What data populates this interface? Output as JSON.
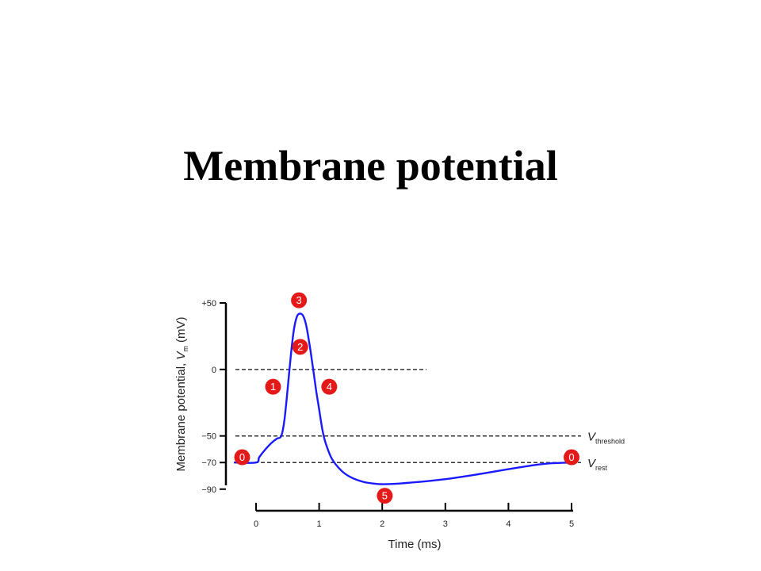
{
  "slide": {
    "title": "Membrane potential"
  },
  "chart_data": {
    "type": "line",
    "xlabel": "Time (ms)",
    "ylabel_main": "Membrane potential, ",
    "ylabel_var": "V",
    "ylabel_sub": "m",
    "ylabel_unit": " (mV)",
    "xlim": [
      0,
      5
    ],
    "ylim": [
      -90,
      50
    ],
    "x_ticks": [
      0,
      1,
      2,
      3,
      4,
      5
    ],
    "x_tick_labels": [
      "0",
      "1",
      "2",
      "3",
      "4",
      "5"
    ],
    "y_ticks": [
      50,
      0,
      -50,
      -70,
      -90
    ],
    "y_tick_labels": [
      "+50",
      "0",
      "−50",
      "−70",
      "−90"
    ],
    "series": [
      {
        "color": "#1a1aff",
        "points": [
          [
            -0.35,
            -70
          ],
          [
            0.0,
            -70
          ],
          [
            0.05,
            -66
          ],
          [
            0.15,
            -60
          ],
          [
            0.25,
            -55
          ],
          [
            0.33,
            -52
          ],
          [
            0.4,
            -50
          ],
          [
            0.45,
            -38
          ],
          [
            0.5,
            -15
          ],
          [
            0.55,
            10
          ],
          [
            0.6,
            30
          ],
          [
            0.65,
            40
          ],
          [
            0.7,
            42
          ],
          [
            0.75,
            40
          ],
          [
            0.8,
            32
          ],
          [
            0.85,
            18
          ],
          [
            0.9,
            2
          ],
          [
            0.95,
            -15
          ],
          [
            1.0,
            -30
          ],
          [
            1.05,
            -45
          ],
          [
            1.1,
            -55
          ],
          [
            1.2,
            -67
          ],
          [
            1.35,
            -76
          ],
          [
            1.5,
            -81
          ],
          [
            1.7,
            -84.5
          ],
          [
            1.9,
            -86
          ],
          [
            2.0,
            -86.3
          ],
          [
            2.2,
            -86
          ],
          [
            2.6,
            -84.5
          ],
          [
            3.0,
            -82.5
          ],
          [
            3.5,
            -79
          ],
          [
            4.0,
            -75
          ],
          [
            4.4,
            -72
          ],
          [
            4.7,
            -70.5
          ],
          [
            5.0,
            -70
          ]
        ]
      }
    ],
    "reference_lines": [
      {
        "y": 0,
        "x_end": 2.7
      },
      {
        "y": -50,
        "x_end": 5.0,
        "label_var": "V",
        "label_sub": "threshold"
      },
      {
        "y": -70,
        "x_end": 5.0,
        "label_var": "V",
        "label_sub": "rest"
      }
    ],
    "phase_markers": [
      {
        "label": "0",
        "x": -0.22,
        "y": -66
      },
      {
        "label": "1",
        "x": 0.27,
        "y": -13
      },
      {
        "label": "2",
        "x": 0.7,
        "y": 17
      },
      {
        "label": "3",
        "x": 0.68,
        "y": 52
      },
      {
        "label": "4",
        "x": 1.16,
        "y": -13
      },
      {
        "label": "5",
        "x": 2.04,
        "y": -95
      },
      {
        "label": "0",
        "x": 5.0,
        "y": -66
      }
    ],
    "colors": {
      "curve": "#1a1aff",
      "marker_fill": "#e41a1a",
      "marker_text": "#ffffff",
      "axis": "#000000",
      "reference": "#333333"
    }
  }
}
